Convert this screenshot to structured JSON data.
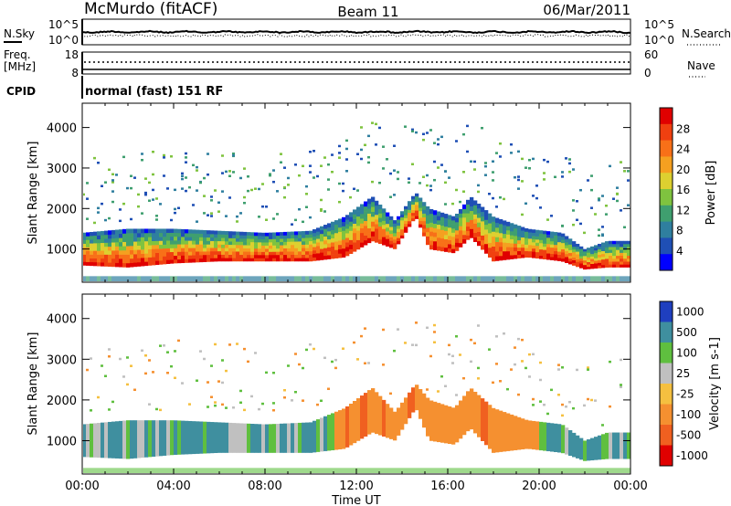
{
  "header": {
    "station": "McMurdo (fitACF)",
    "beam": "Beam 11",
    "date": "06/Mar/2011"
  },
  "noise_panel": {
    "left_label": "N.Sky",
    "right_label": "N.Search",
    "y_top": "10^5",
    "y_bottom": "10^0",
    "right_top": "10^5",
    "right_bottom": "10^0"
  },
  "freq_panel": {
    "left_label_line1": "Freq.",
    "left_label_line2": "[MHz]",
    "right_label": "Nave",
    "y_top": "18",
    "y_bottom": "8",
    "right_top": "60",
    "right_bottom": "0"
  },
  "cpid_panel": {
    "label": "CPID",
    "text": "normal (fast) 151 RF"
  },
  "chart_data": [
    {
      "type": "heatmap",
      "title": "",
      "xlabel": "",
      "ylabel": "Slant Range [km]",
      "xlim": [
        0,
        24
      ],
      "ylim": [
        180,
        4600
      ],
      "yticks": [
        "1000",
        "2000",
        "3000",
        "4000"
      ],
      "colorbar": {
        "label": "Power [dB]",
        "ticks": [
          "4",
          "8",
          "12",
          "16",
          "20",
          "24",
          "28"
        ],
        "colors": [
          "#0000ff",
          "#1f4fb5",
          "#2f7f9f",
          "#3f9f6f",
          "#7fc33f",
          "#ddd030",
          "#f5a020",
          "#f87018",
          "#f04010",
          "#e00000"
        ],
        "range": [
          0,
          32
        ]
      },
      "main_band_km": [
        {
          "t": 0,
          "lo": 600,
          "hi": 1400
        },
        {
          "t": 2,
          "lo": 550,
          "hi": 1500
        },
        {
          "t": 4,
          "lo": 650,
          "hi": 1500
        },
        {
          "t": 6,
          "lo": 700,
          "hi": 1450
        },
        {
          "t": 8,
          "lo": 700,
          "hi": 1400
        },
        {
          "t": 10,
          "lo": 700,
          "hi": 1450
        },
        {
          "t": 11.5,
          "lo": 800,
          "hi": 1800
        },
        {
          "t": 12.7,
          "lo": 1200,
          "hi": 2300
        },
        {
          "t": 13.7,
          "lo": 1000,
          "hi": 1700
        },
        {
          "t": 14.6,
          "lo": 1800,
          "hi": 2400
        },
        {
          "t": 15.2,
          "lo": 1000,
          "hi": 2000
        },
        {
          "t": 16.3,
          "lo": 900,
          "hi": 1800
        },
        {
          "t": 17,
          "lo": 1300,
          "hi": 2300
        },
        {
          "t": 18,
          "lo": 700,
          "hi": 1800
        },
        {
          "t": 19.5,
          "lo": 800,
          "hi": 1500
        },
        {
          "t": 21,
          "lo": 700,
          "hi": 1400
        },
        {
          "t": 22,
          "lo": 500,
          "hi": 1000
        },
        {
          "t": 23,
          "lo": 550,
          "hi": 1200
        },
        {
          "t": 24,
          "lo": 550,
          "hi": 1200
        }
      ]
    },
    {
      "type": "heatmap",
      "title": "",
      "xlabel": "Time UT",
      "ylabel": "Slant Range [km]",
      "xlim": [
        0,
        24
      ],
      "ylim": [
        180,
        4600
      ],
      "xticks": [
        "00:00",
        "04:00",
        "08:00",
        "12:00",
        "16:00",
        "20:00",
        "00:00"
      ],
      "yticks": [
        "1000",
        "2000",
        "3000",
        "4000"
      ],
      "colorbar": {
        "label": "Velocity [m s-1]",
        "ticks": [
          "1000",
          "500",
          "100",
          "25",
          "-25",
          "-100",
          "-500",
          "-1000"
        ],
        "colors": [
          "#1f3fbf",
          "#3f8f9f",
          "#5fbf3f",
          "#c0c0c0",
          "#f5c040",
          "#f59030",
          "#f06020",
          "#e00000"
        ]
      }
    }
  ]
}
